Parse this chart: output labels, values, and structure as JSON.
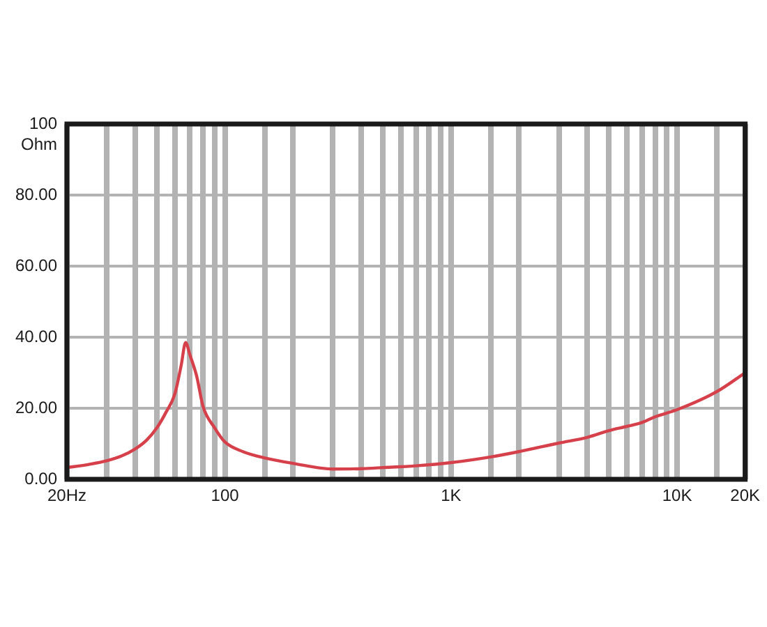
{
  "chart_data": {
    "type": "line",
    "ylabel": "Ohm",
    "x": [
      20,
      25,
      30,
      35,
      40,
      45,
      50,
      55,
      60,
      64,
      67,
      70,
      75,
      80,
      90,
      100,
      120,
      150,
      200,
      300,
      400,
      500,
      700,
      1000,
      1500,
      2000,
      3000,
      4000,
      5000,
      6000,
      7000,
      8000,
      10000,
      15000,
      20000
    ],
    "values": [
      3.3,
      4.2,
      5.2,
      6.6,
      8.5,
      11,
      14.5,
      19,
      24,
      32,
      38.5,
      35,
      29,
      20.5,
      14.5,
      10.5,
      7.8,
      6,
      4.5,
      2.9,
      3,
      3.3,
      3.8,
      4.7,
      6.3,
      7.8,
      10.2,
      11.8,
      13.7,
      14.9,
      16,
      17.6,
      19.6,
      24.7,
      30
    ],
    "color": "#d6404a",
    "marker": "none",
    "line_style": "solid",
    "log": "x",
    "grid": true,
    "legend": false,
    "xlim": [
      20,
      20000
    ],
    "xticks": [
      {
        "value": 20,
        "label": "20Hz"
      },
      {
        "value": 30,
        "label": null
      },
      {
        "value": 40,
        "label": null
      },
      {
        "value": 50,
        "label": null
      },
      {
        "value": 60,
        "label": null
      },
      {
        "value": 70,
        "label": null
      },
      {
        "value": 80,
        "label": null
      },
      {
        "value": 90,
        "label": null
      },
      100,
      {
        "value": 150,
        "label": null
      },
      {
        "value": 200,
        "label": null
      },
      {
        "value": 300,
        "label": null
      },
      {
        "value": 400,
        "label": null
      },
      {
        "value": 500,
        "label": null
      },
      {
        "value": 600,
        "label": null
      },
      {
        "value": 700,
        "label": null
      },
      {
        "value": 800,
        "label": null
      },
      {
        "value": 900,
        "label": null
      },
      {
        "value": 1000,
        "label": "1K"
      },
      {
        "value": 1500,
        "label": null
      },
      {
        "value": 2000,
        "label": null
      },
      {
        "value": 3000,
        "label": null
      },
      {
        "value": 4000,
        "label": null
      },
      {
        "value": 5000,
        "label": null
      },
      {
        "value": 6000,
        "label": null
      },
      {
        "value": 7000,
        "label": null
      },
      {
        "value": 8000,
        "label": null
      },
      {
        "value": 9000,
        "label": null
      },
      {
        "value": 10000,
        "label": "10K"
      },
      {
        "value": 15000,
        "label": null
      },
      {
        "value": 20000,
        "label": "20K"
      }
    ],
    "ylim": [
      0,
      100
    ],
    "yticks": [
      {
        "value": 0,
        "label": "0.00"
      },
      {
        "value": 20,
        "label": "20.00"
      },
      {
        "value": 40,
        "label": "40.00"
      },
      {
        "value": 60,
        "label": "60.00"
      },
      {
        "value": 80,
        "label": "80.00"
      },
      100
    ]
  }
}
